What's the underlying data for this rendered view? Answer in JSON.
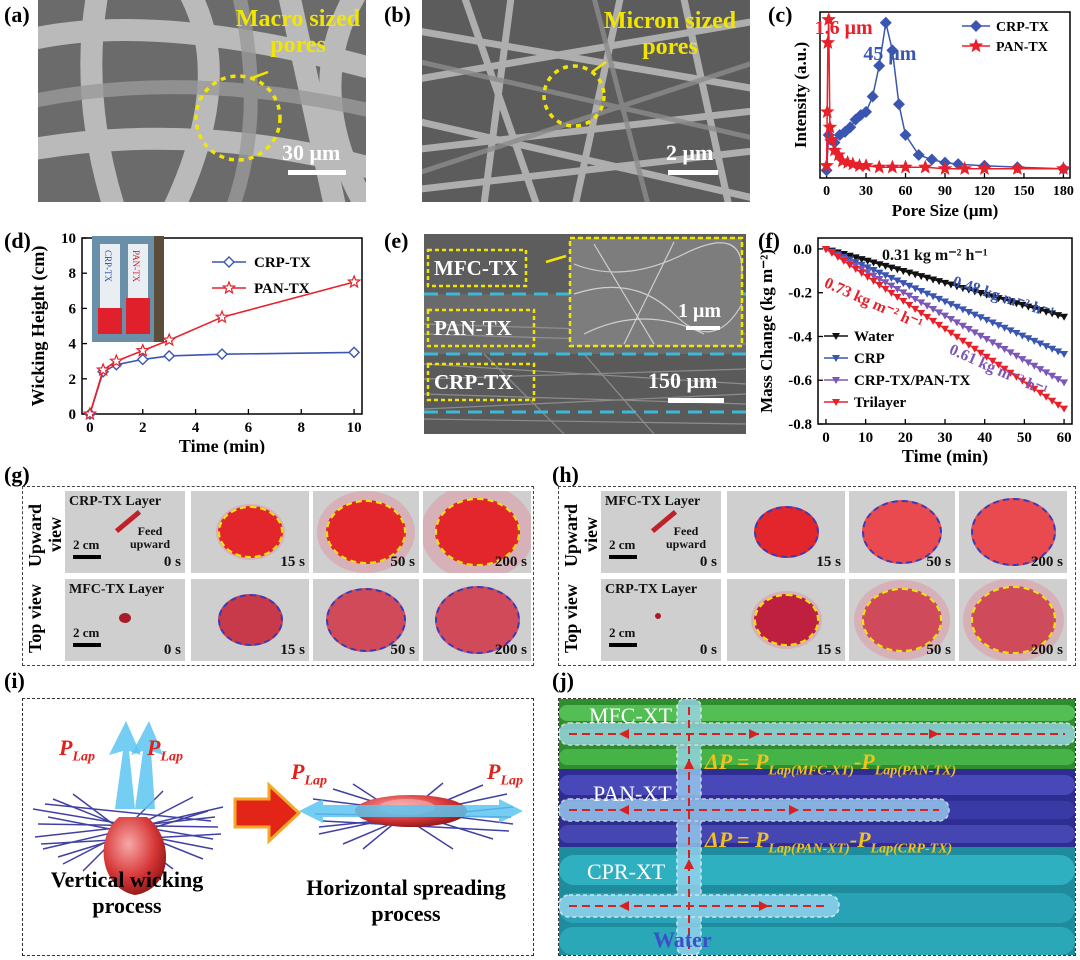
{
  "panels": {
    "a": {
      "label": "(a)",
      "annotation_line1": "Macro sized",
      "annotation_line2": "pores",
      "scale": "30 μm"
    },
    "b": {
      "label": "(b)",
      "annotation_line1": "Micron sized",
      "annotation_line2": "pores",
      "scale": "2 μm"
    },
    "c": {
      "label": "(c)"
    },
    "d": {
      "label": "(d)",
      "inset_left": "CRP-TX",
      "inset_right": "PAN-TX"
    },
    "e": {
      "label": "(e)",
      "layers": [
        "MFC-TX",
        "PAN-TX",
        "CRP-TX"
      ],
      "inset_scale": "1 μm",
      "scale": "150 μm"
    },
    "f": {
      "label": "(f)"
    },
    "g": {
      "label": "(g)",
      "top_layer": "CRP-TX Layer",
      "bottom_layer": "MFC-TX Layer",
      "feed_text": "Feed upward",
      "scale": "2 cm",
      "view_up": "Upward view",
      "view_top": "Top view",
      "times": [
        "0 s",
        "15 s",
        "50 s",
        "200 s"
      ]
    },
    "h": {
      "label": "(h)",
      "top_layer": "MFC-TX Layer",
      "bottom_layer": "CRP-TX Layer",
      "feed_text": "Feed upward",
      "scale": "2 cm",
      "view_up": "Upward view",
      "view_top": "Top view",
      "times": [
        "0 s",
        "15 s",
        "50 s",
        "200 s"
      ]
    },
    "i": {
      "label": "(i)",
      "p_label": "P",
      "p_sub": "Lap",
      "left_caption_1": "Vertical wicking",
      "left_caption_2": "process",
      "right_caption_1": "Horizontal spreading",
      "right_caption_2": "process"
    },
    "j": {
      "label": "(j)",
      "layers": [
        "MFC-XT",
        "PAN-XT",
        "CPR-XT"
      ],
      "eq1": "ΔP = P",
      "eq1_sub1": "Lap(MFC-XT)",
      "eq1_mid": "-P",
      "eq1_sub2": "Lap(PAN-TX)",
      "eq2": "ΔP = P",
      "eq2_sub1": "Lap(PAN-XT)",
      "eq2_mid": "-P",
      "eq2_sub2": "Lap(CRP-TX)",
      "water": "Water"
    }
  },
  "chart_data": [
    {
      "id": "c",
      "type": "line",
      "xlabel": "Pore Size (μm)",
      "ylabel": "Intensity (a.u.)",
      "xlim": [
        -5,
        185
      ],
      "xticks": [
        0,
        30,
        60,
        90,
        120,
        150,
        180
      ],
      "annotations": [
        "1.6 μm",
        "45 μm"
      ],
      "legend": "top-right",
      "colors": {
        "CRP-TX": "#3a56b0",
        "PAN-TX": "#e8202a"
      },
      "series": [
        {
          "name": "CRP-TX",
          "x": [
            0,
            1.6,
            3,
            6,
            10,
            14,
            18,
            22,
            26,
            30,
            35,
            40,
            45,
            50,
            55,
            60,
            70,
            80,
            90,
            100,
            120,
            145,
            180
          ],
          "y": [
            0.02,
            0.25,
            0.22,
            0.2,
            0.25,
            0.27,
            0.3,
            0.35,
            0.38,
            0.4,
            0.5,
            0.7,
            0.98,
            0.8,
            0.45,
            0.25,
            0.12,
            0.09,
            0.07,
            0.06,
            0.05,
            0.04,
            0.03
          ]
        },
        {
          "name": "PAN-TX",
          "x": [
            0,
            0.5,
            1,
            1.6,
            2.5,
            4,
            6,
            9,
            12,
            16,
            20,
            25,
            30,
            40,
            50,
            60,
            75,
            90,
            105,
            120,
            145,
            180
          ],
          "y": [
            0.05,
            0.4,
            0.85,
            1.0,
            0.3,
            0.22,
            0.15,
            0.12,
            0.08,
            0.07,
            0.06,
            0.05,
            0.05,
            0.04,
            0.04,
            0.04,
            0.04,
            0.03,
            0.03,
            0.03,
            0.03,
            0.03
          ]
        }
      ]
    },
    {
      "id": "d",
      "type": "line",
      "xlabel": "Time (min)",
      "ylabel": "Wicking Height (cm)",
      "xlim": [
        -0.3,
        10.3
      ],
      "ylim": [
        0,
        10
      ],
      "xticks": [
        0,
        2,
        4,
        6,
        8,
        10
      ],
      "yticks": [
        0,
        2,
        4,
        6,
        8,
        10
      ],
      "legend": "top-right",
      "colors": {
        "CRP-TX": "#3a56b0",
        "PAN-TX": "#e8202a"
      },
      "series": [
        {
          "name": "CRP-TX",
          "x": [
            0,
            0.5,
            1,
            2,
            3,
            5,
            10
          ],
          "y": [
            0,
            2.4,
            2.8,
            3.1,
            3.3,
            3.4,
            3.5
          ]
        },
        {
          "name": "PAN-TX",
          "x": [
            0,
            0.5,
            1,
            2,
            3,
            5,
            10
          ],
          "y": [
            0,
            2.5,
            3.0,
            3.6,
            4.2,
            5.5,
            7.5
          ]
        }
      ]
    },
    {
      "id": "f",
      "type": "line",
      "xlabel": "Time (min)",
      "ylabel": "Mass Change (kg m⁻²)",
      "xlim": [
        -2,
        62
      ],
      "ylim": [
        -0.8,
        0.05
      ],
      "xticks": [
        0,
        10,
        20,
        30,
        40,
        50,
        60
      ],
      "yticks": [
        0.0,
        -0.2,
        -0.4,
        -0.6,
        -0.8
      ],
      "legend": "bottom-left",
      "rate_labels": [
        "0.31 kg m⁻² h⁻¹",
        "0.48 kg m⁻² h⁻¹",
        "0.73 kg m⁻² h⁻¹",
        "0.61 kg m⁻² h⁻¹"
      ],
      "series": [
        {
          "name": "Water",
          "color": "#111111",
          "x": [
            0,
            60
          ],
          "y": [
            0,
            -0.31
          ]
        },
        {
          "name": "CRP",
          "color": "#3a56b0",
          "x": [
            0,
            60
          ],
          "y": [
            0,
            -0.48
          ]
        },
        {
          "name": "CRP-TX/PAN-TX",
          "color": "#7b57b8",
          "x": [
            0,
            60
          ],
          "y": [
            0,
            -0.61
          ]
        },
        {
          "name": "Trilayer",
          "color": "#e8202a",
          "x": [
            0,
            60
          ],
          "y": [
            0,
            -0.73
          ]
        }
      ]
    }
  ]
}
